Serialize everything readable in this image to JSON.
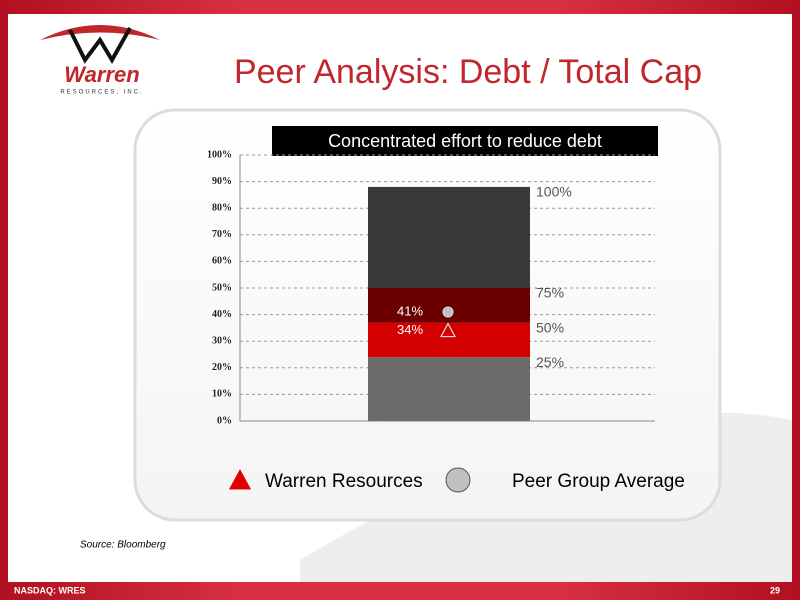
{
  "slide": {
    "logo": "Warren",
    "logo_sub": "RESOURCES, INC.",
    "title": "Peer Analysis: Debt / Total Cap",
    "source": "Source: Bloomberg",
    "footer_left": "NASDAQ: WRES",
    "page": "29"
  },
  "chart_data": {
    "type": "stacked_bar",
    "title": "Concentrated effort to reduce debt",
    "segments": {
      "values": [
        24,
        13,
        13,
        38
      ],
      "colors": [
        "#6b6b6b",
        "#d40000",
        "#6a0000",
        "#3a3a3a"
      ]
    },
    "band_labels": [
      "25%",
      "50%",
      "75%",
      "100%"
    ],
    "markers": [
      {
        "name": "Warren Resources",
        "shape": "triangle",
        "color": "#e00000",
        "value": 34,
        "value_label": "34%"
      },
      {
        "name": "Peer Group Average",
        "shape": "circle",
        "color": "#c0c0c0",
        "value": 41,
        "value_label": "41%"
      }
    ],
    "ylim": [
      0,
      100
    ],
    "yticks": [
      {
        "value": 0,
        "label": "0%"
      },
      {
        "value": 10,
        "label": "10%"
      },
      {
        "value": 20,
        "label": "20%"
      },
      {
        "value": 30,
        "label": "30%"
      },
      {
        "value": 40,
        "label": "40%"
      },
      {
        "value": 50,
        "label": "50%"
      },
      {
        "value": 60,
        "label": "60%"
      },
      {
        "value": 70,
        "label": "70%"
      },
      {
        "value": 80,
        "label": "80%"
      },
      {
        "value": 90,
        "label": "90%"
      },
      {
        "value": 100,
        "label": "100%"
      }
    ],
    "grid": true
  }
}
